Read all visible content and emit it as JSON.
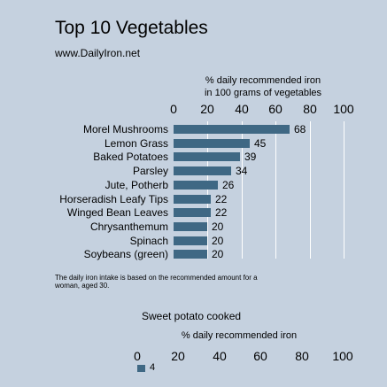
{
  "chart_data": [
    {
      "type": "bar",
      "orientation": "horizontal",
      "title": "Top 10 Vegetables",
      "subtitle": "www.DailyIron.net",
      "xlabel": "% daily recommended iron\nin 100 grams of vegetables",
      "xlim": [
        0,
        100
      ],
      "ticks": [
        0,
        20,
        40,
        60,
        80,
        100
      ],
      "grid": true,
      "categories": [
        "Morel Mushrooms",
        "Lemon Grass",
        "Baked Potatoes",
        "Parsley",
        "Jute, Potherb",
        "Horseradish Leafy Tips",
        "Winged Bean Leaves",
        "Chrysanthemum",
        "Spinach",
        "Soybeans (green)"
      ],
      "values": [
        68,
        45,
        39,
        34,
        26,
        22,
        22,
        20,
        20,
        20
      ],
      "color": "#3f6884",
      "footnote": "The daily iron intake is based on the recommended amount for a woman, aged 30."
    },
    {
      "type": "bar",
      "orientation": "horizontal",
      "title": "Sweet potato cooked",
      "xlabel": "% daily recommended iron",
      "xlim": [
        0,
        100
      ],
      "ticks": [
        0,
        20,
        40,
        60,
        80,
        100
      ],
      "categories": [
        ""
      ],
      "values": [
        4
      ],
      "color": "#3f6884"
    }
  ]
}
